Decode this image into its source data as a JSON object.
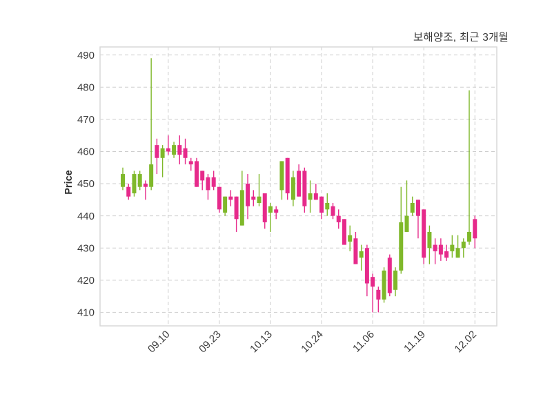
{
  "chart_data": {
    "type": "candlestick",
    "title": "보해양조, 최근 3개월",
    "ylabel": "Price",
    "xlabel": "",
    "ylim": [
      405.8,
      492.5
    ],
    "yticks": [
      410,
      420,
      430,
      440,
      450,
      460,
      470,
      480,
      490
    ],
    "xticks": [
      {
        "index": 8,
        "label": "09.10"
      },
      {
        "index": 17,
        "label": "09.23"
      },
      {
        "index": 26,
        "label": "10.13"
      },
      {
        "index": 35,
        "label": "10.24"
      },
      {
        "index": 44,
        "label": "11.06"
      },
      {
        "index": 53,
        "label": "11.19"
      },
      {
        "index": 62,
        "label": "12.02"
      }
    ],
    "grid": {
      "visible": true,
      "style": "dashed",
      "axes": "both"
    },
    "legend": "none",
    "colors": {
      "up_candle": "#7fb82a",
      "down_candle": "#e62a8b",
      "grid_line": "#cdcdcd",
      "plot_border": "#d9d9d9",
      "tick_text": "#3a3a3a",
      "background": "#ffffff"
    },
    "ohlc_note": "each candle is [open, high, low, close]; close>=open renders green (up), close<open renders pink (down)",
    "ohlc": [
      [
        449,
        455,
        448,
        453
      ],
      [
        449,
        450,
        445,
        446
      ],
      [
        447,
        454,
        446,
        453
      ],
      [
        449,
        454,
        448,
        453
      ],
      [
        450,
        451,
        445,
        449
      ],
      [
        449,
        489,
        448,
        456
      ],
      [
        462,
        464,
        453,
        458
      ],
      [
        458,
        462,
        452,
        461
      ],
      [
        461,
        465,
        459,
        460
      ],
      [
        459,
        463,
        458,
        462
      ],
      [
        462,
        465,
        456,
        459
      ],
      [
        461,
        464,
        456,
        458
      ],
      [
        457,
        458,
        454,
        456
      ],
      [
        457,
        458,
        449,
        449
      ],
      [
        454,
        454,
        448,
        451
      ],
      [
        452,
        453,
        445,
        448
      ],
      [
        452,
        454,
        448,
        449
      ],
      [
        449,
        449,
        441,
        442
      ],
      [
        441,
        446,
        440,
        446
      ],
      [
        446,
        448,
        443,
        445
      ],
      [
        446,
        446,
        435,
        439
      ],
      [
        437,
        454,
        437,
        448
      ],
      [
        450,
        453,
        439,
        443
      ],
      [
        446,
        448,
        443,
        445
      ],
      [
        444,
        453,
        443,
        446
      ],
      [
        447,
        447,
        436,
        438
      ],
      [
        441,
        444,
        435,
        443
      ],
      [
        442,
        443,
        439,
        441
      ],
      [
        448,
        457,
        445,
        457
      ],
      [
        458,
        458,
        445,
        447
      ],
      [
        445,
        454,
        443,
        452
      ],
      [
        454,
        456,
        446,
        446
      ],
      [
        454,
        455,
        441,
        443
      ],
      [
        445,
        451,
        441,
        447
      ],
      [
        447,
        450,
        445,
        445
      ],
      [
        446,
        446,
        439,
        441
      ],
      [
        442,
        447,
        440,
        444
      ],
      [
        443,
        444,
        439,
        440
      ],
      [
        440,
        442,
        436,
        438
      ],
      [
        439,
        439,
        431,
        431
      ],
      [
        432,
        437,
        429,
        434
      ],
      [
        433,
        435,
        425,
        425
      ],
      [
        427,
        431,
        423,
        429
      ],
      [
        430,
        431,
        415,
        419
      ],
      [
        421,
        422,
        410,
        418
      ],
      [
        417,
        418,
        410,
        414
      ],
      [
        414,
        424,
        413,
        423
      ],
      [
        427,
        428,
        415,
        416
      ],
      [
        417,
        424,
        415,
        423
      ],
      [
        423,
        449,
        422,
        438
      ],
      [
        435,
        451,
        435,
        440
      ],
      [
        441,
        446,
        440,
        444
      ],
      [
        445,
        445,
        433,
        440
      ],
      [
        442,
        442,
        425,
        427
      ],
      [
        430,
        437,
        425,
        435
      ],
      [
        431,
        433,
        425,
        429
      ],
      [
        431,
        433,
        426,
        428
      ],
      [
        429,
        431,
        426,
        427
      ],
      [
        429,
        434,
        427,
        431
      ],
      [
        427,
        434,
        427,
        430
      ],
      [
        430,
        433,
        427,
        432
      ],
      [
        432,
        479,
        431,
        435
      ],
      [
        439,
        440,
        430,
        433
      ]
    ]
  }
}
